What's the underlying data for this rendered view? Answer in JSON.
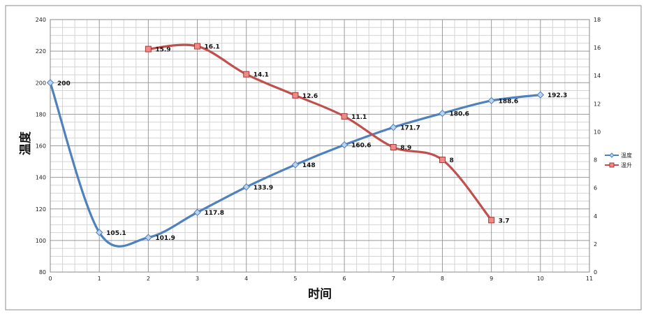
{
  "chart_data": {
    "type": "line",
    "xlabel": "时间",
    "ylabel": "温度",
    "xlim": [
      0,
      11
    ],
    "x_ticks": [
      0,
      1,
      2,
      3,
      4,
      5,
      6,
      7,
      8,
      9,
      10,
      11
    ],
    "ylim": [
      80,
      240
    ],
    "y_ticks": [
      80,
      100,
      120,
      140,
      160,
      180,
      200,
      220,
      240
    ],
    "y2lim": [
      0,
      18
    ],
    "y2_ticks": [
      0,
      2,
      4,
      6,
      8,
      10,
      12,
      14,
      16,
      18
    ],
    "grid": true,
    "legend": "right",
    "series": [
      {
        "name": "温度",
        "axis": "left",
        "color": "#4f81bd",
        "marker": "diamond",
        "x": [
          0,
          1,
          2,
          3,
          4,
          5,
          6,
          7,
          8,
          9,
          10
        ],
        "values": [
          200,
          105.1,
          101.9,
          117.8,
          133.9,
          148,
          160.6,
          171.7,
          180.6,
          188.6,
          192.3
        ],
        "labels": [
          "200",
          "105.1",
          "101.9",
          "117.8",
          "133.9",
          "148",
          "160.6",
          "171.7",
          "180.6",
          "188.6",
          "192.3"
        ]
      },
      {
        "name": "温升",
        "axis": "right",
        "color": "#c0504d",
        "marker": "square",
        "x": [
          2,
          3,
          4,
          5,
          6,
          7,
          8,
          9
        ],
        "values": [
          15.9,
          16.1,
          14.1,
          12.6,
          11.1,
          8.9,
          8,
          3.7
        ],
        "labels": [
          "15.9",
          "16.1",
          "14.1",
          "12.6",
          "11.1",
          "8.9",
          "8",
          "3.7"
        ]
      }
    ]
  }
}
